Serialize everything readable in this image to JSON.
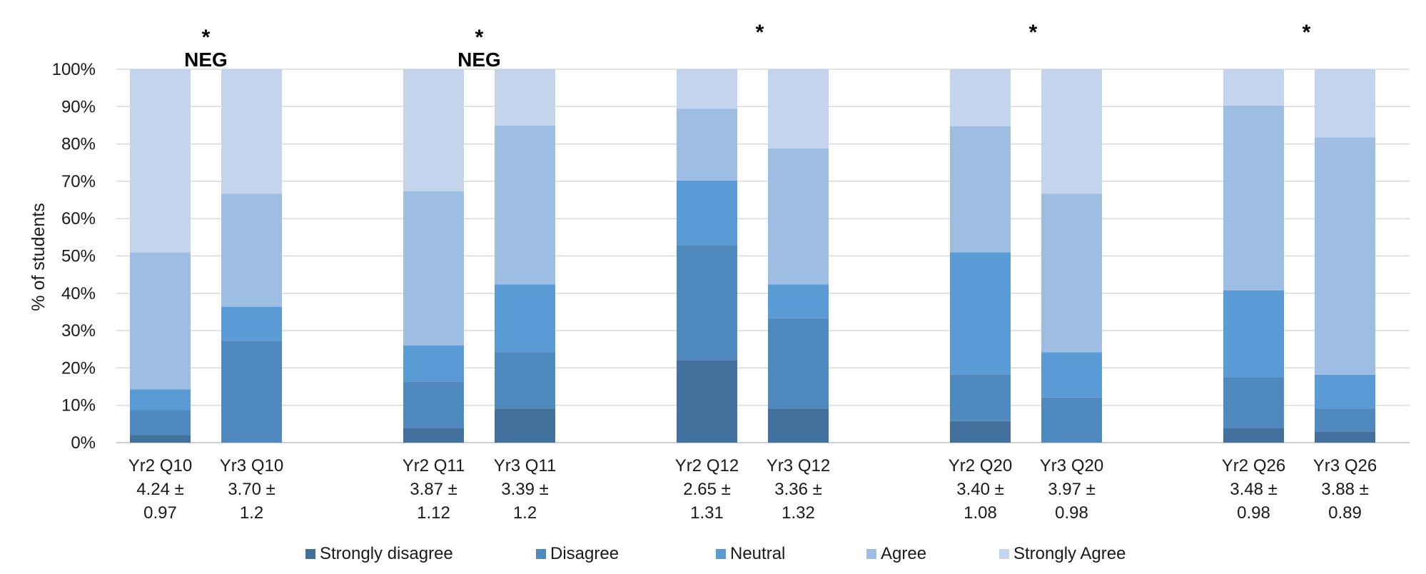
{
  "chart_data": {
    "type": "stacked-bar",
    "title": "",
    "xlabel": "",
    "ylabel": "% of students",
    "ylim": [
      0,
      100
    ],
    "yticks": [
      "0%",
      "10%",
      "20%",
      "30%",
      "40%",
      "50%",
      "60%",
      "70%",
      "80%",
      "90%",
      "100%"
    ],
    "grid": true,
    "legend_position": "bottom",
    "colors": {
      "Strongly disagree": "#41719c",
      "Disagree": "#4f89bd",
      "Neutral": "#5b9bd5",
      "Agree": "#9dbde2",
      "Strongly Agree": "#c3d4ec"
    },
    "series_names": [
      "Strongly disagree",
      "Disagree",
      "Neutral",
      "Agree",
      "Strongly Agree"
    ],
    "groups": [
      {
        "annotation": "*",
        "annotation2": "NEG",
        "bars": [
          {
            "label": "Yr2 Q10",
            "mean": "4.24 ±",
            "sd": "0.97",
            "values": [
              2,
              6.7,
              5.6,
              36.7,
              49
            ]
          },
          {
            "label": "Yr3 Q10",
            "mean": "3.70 ±",
            "sd": "1.2",
            "values": [
              0,
              27.3,
              9.1,
              30.3,
              33.3
            ]
          }
        ]
      },
      {
        "annotation": "*",
        "annotation2": "NEG",
        "bars": [
          {
            "label": "Yr2 Q11",
            "mean": "3.87 ±",
            "sd": "1.12",
            "values": [
              3.9,
              12.5,
              9.6,
              41.3,
              32.7
            ]
          },
          {
            "label": "Yr3 Q11",
            "mean": "3.39 ±",
            "sd": "1.2",
            "values": [
              9.1,
              15.1,
              18.2,
              42.5,
              15.1
            ]
          }
        ]
      },
      {
        "annotation": "*",
        "annotation2": "",
        "bars": [
          {
            "label": "Yr2 Q12",
            "mean": "2.65 ±",
            "sd": "1.31",
            "values": [
              22.1,
              30.8,
              17.3,
              19.2,
              10.6
            ]
          },
          {
            "label": "Yr3 Q12",
            "mean": "3.36 ±",
            "sd": "1.32",
            "values": [
              9.1,
              24.2,
              9.1,
              36.4,
              21.2
            ]
          }
        ]
      },
      {
        "annotation": "*",
        "annotation2": "",
        "bars": [
          {
            "label": "Yr2 Q20",
            "mean": "3.40 ±",
            "sd": "1.08",
            "values": [
              5.8,
              12.5,
              32.7,
              33.7,
              15.3
            ]
          },
          {
            "label": "Yr3 Q20",
            "mean": "3.97 ±",
            "sd": "0.98",
            "values": [
              0,
              12.1,
              12.1,
              42.5,
              33.3
            ]
          }
        ]
      },
      {
        "annotation": "*",
        "annotation2": "",
        "bars": [
          {
            "label": "Yr2 Q26",
            "mean": "3.48 ±",
            "sd": "0.98",
            "values": [
              3.9,
              13.5,
              23.4,
              49.5,
              9.7
            ]
          },
          {
            "label": "Yr3 Q26",
            "mean": "3.88 ±",
            "sd": "0.89",
            "values": [
              3,
              6.1,
              9.1,
              63.6,
              18.2
            ]
          }
        ]
      }
    ]
  }
}
